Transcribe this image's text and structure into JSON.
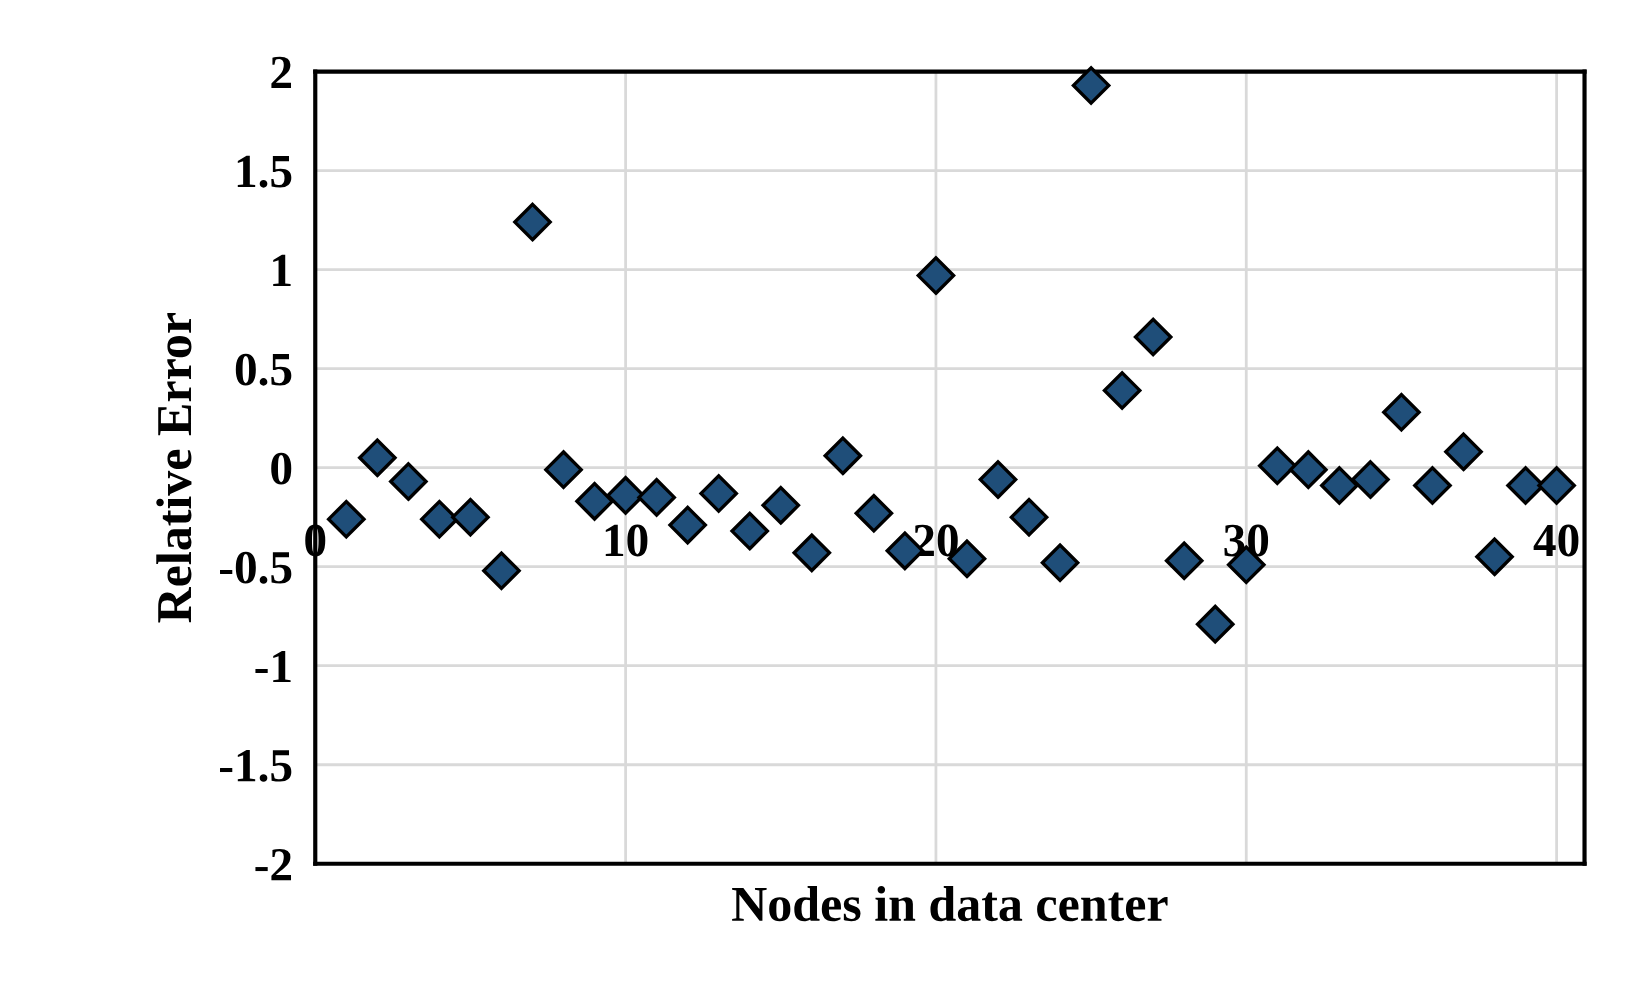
{
  "chart_data": {
    "type": "scatter",
    "xlabel": "Nodes in data center",
    "ylabel": "Relative Error",
    "x": [
      1,
      2,
      3,
      4,
      5,
      6,
      7,
      8,
      9,
      10,
      11,
      12,
      13,
      14,
      15,
      16,
      17,
      18,
      19,
      20,
      21,
      22,
      23,
      24,
      25,
      26,
      27,
      28,
      29,
      30,
      31,
      32,
      33,
      34,
      35,
      36,
      37,
      38,
      39,
      40
    ],
    "series": [
      {
        "color": "#1f4e79",
        "values": [
          -0.26,
          0.05,
          -0.07,
          -0.26,
          -0.25,
          -0.52,
          1.24,
          -0.01,
          -0.17,
          -0.14,
          -0.15,
          -0.29,
          -0.13,
          -0.32,
          -0.19,
          -0.43,
          0.06,
          -0.23,
          -0.42,
          0.97,
          -0.46,
          -0.06,
          -0.25,
          -0.48,
          1.93,
          0.39,
          0.66,
          -0.47,
          -0.79,
          -0.49,
          0.01,
          -0.01,
          -0.09,
          -0.06,
          0.28,
          -0.09,
          0.08,
          -0.45,
          -0.09,
          -0.09
        ]
      }
    ],
    "xlim": [
      0,
      40.9
    ],
    "xticks": [
      0,
      10,
      20,
      30,
      40
    ],
    "ylim": [
      -2,
      2
    ],
    "yticks": [
      -2,
      -1.5,
      -1,
      -0.5,
      0,
      0.5,
      1,
      1.5,
      2
    ],
    "grid": true,
    "marker": "diamond",
    "legend": false
  }
}
